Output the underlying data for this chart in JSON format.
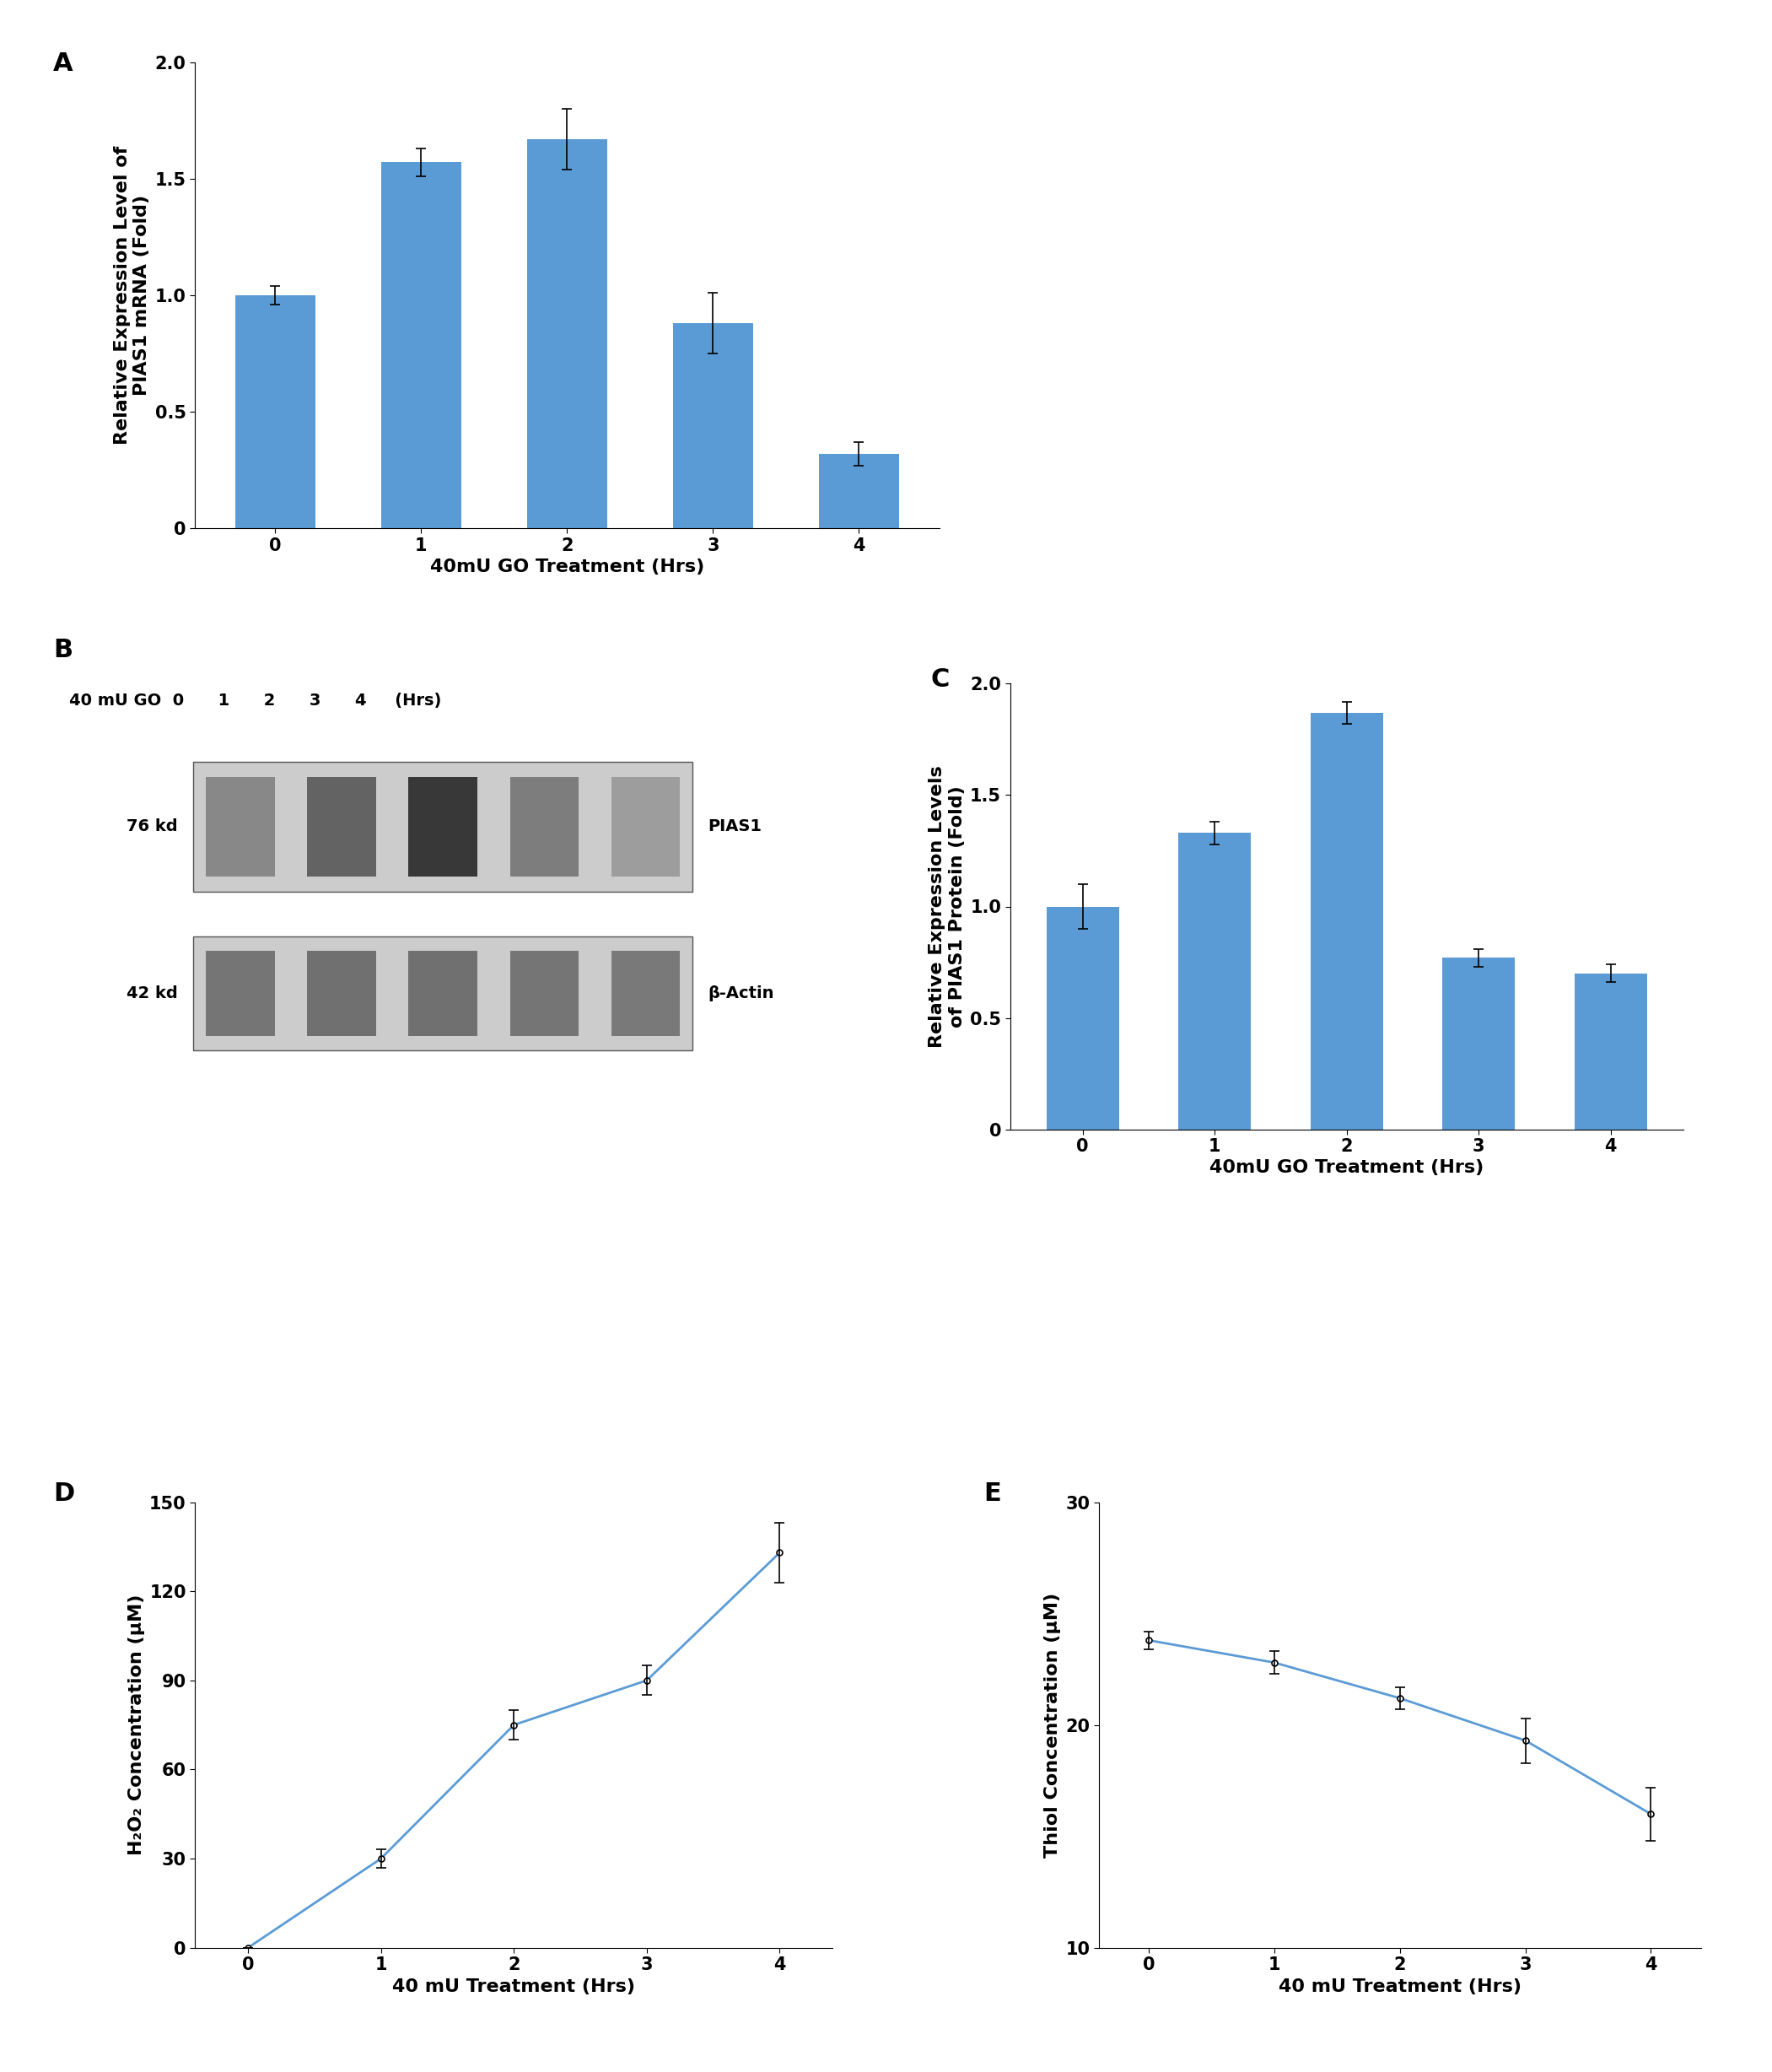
{
  "panel_A": {
    "label": "A",
    "x": [
      0,
      1,
      2,
      3,
      4
    ],
    "y": [
      1.0,
      1.57,
      1.67,
      0.88,
      0.32
    ],
    "yerr": [
      0.04,
      0.06,
      0.13,
      0.13,
      0.05
    ],
    "bar_color": "#5b9bd5",
    "xlabel": "40mU GO Treatment (Hrs)",
    "ylabel": "Relative Expression Level of\nPIAS1 mRNA (Fold)",
    "ylim": [
      0,
      2.0
    ],
    "yticks": [
      0,
      0.5,
      1.0,
      1.5,
      2.0
    ],
    "ytick_labels": [
      "0",
      "0.5",
      "1.0",
      "1.5",
      "2.0"
    ]
  },
  "panel_C": {
    "label": "C",
    "x": [
      0,
      1,
      2,
      3,
      4
    ],
    "y": [
      1.0,
      1.33,
      1.87,
      0.77,
      0.7
    ],
    "yerr": [
      0.1,
      0.05,
      0.05,
      0.04,
      0.04
    ],
    "bar_color": "#5b9bd5",
    "xlabel": "40mU GO Treatment (Hrs)",
    "ylabel": "Relative Expression Levels\nof PIAS1 Protein (Fold)",
    "ylim": [
      0,
      2.0
    ],
    "yticks": [
      0,
      0.5,
      1.0,
      1.5,
      2.0
    ],
    "ytick_labels": [
      "0",
      "0.5",
      "1.0",
      "1.5",
      "2.0"
    ]
  },
  "panel_D": {
    "label": "D",
    "x": [
      0,
      1,
      2,
      3,
      4
    ],
    "y": [
      0,
      30,
      75,
      90,
      133
    ],
    "yerr": [
      0,
      3,
      5,
      5,
      10
    ],
    "line_color": "#5b9bd5",
    "xlabel": "40 mU Treatment (Hrs)",
    "ylabel": "H₂O₂ Concentration (μM)",
    "ylim": [
      0,
      150
    ],
    "yticks": [
      0,
      30,
      60,
      90,
      120,
      150
    ],
    "ytick_labels": [
      "0",
      "30",
      "60",
      "90",
      "120",
      "150"
    ]
  },
  "panel_E": {
    "label": "E",
    "x": [
      0,
      1,
      2,
      3,
      4
    ],
    "y": [
      23.8,
      22.8,
      21.2,
      19.3,
      16.0
    ],
    "yerr": [
      0.4,
      0.5,
      0.5,
      1.0,
      1.2
    ],
    "line_color": "#5b9bd5",
    "xlabel": "40 mU Treatment (Hrs)",
    "ylabel": "Thiol Concentration (μM)",
    "ylim": [
      10,
      30
    ],
    "yticks": [
      10,
      20,
      30
    ],
    "ytick_labels": [
      "10",
      "20",
      "30"
    ]
  },
  "panel_B": {
    "label": "B",
    "band1_label": "PIAS1",
    "band2_label": "β-Actin",
    "kd1": "76 kd",
    "kd2": "42 kd",
    "header_text": "40 mU GO  0      1      2      3      4     (Hrs)",
    "pias1_intensities": [
      0.55,
      0.72,
      0.92,
      0.6,
      0.45
    ],
    "actin_intensities": [
      0.72,
      0.75,
      0.75,
      0.72,
      0.7
    ]
  },
  "figure_bg": "#ffffff",
  "tick_fontsize": 15,
  "axis_label_fontsize": 16,
  "panel_label_fontsize": 22,
  "header_fontsize": 14
}
